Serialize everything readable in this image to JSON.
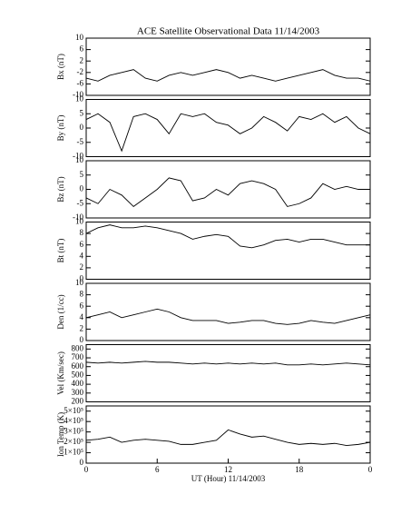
{
  "chart_data": [
    {
      "type": "line",
      "title": "ACE Satellite Observational Data   11/14/2003",
      "y_label": "Bx (nT)",
      "x": [
        0,
        1,
        2,
        3,
        4,
        5,
        6,
        7,
        8,
        9,
        10,
        11,
        12,
        13,
        14,
        15,
        16,
        17,
        18,
        19,
        20,
        21,
        22,
        23,
        24
      ],
      "values": [
        -4,
        -5,
        -3,
        -2,
        -1,
        -4,
        -5,
        -3,
        -2,
        -3,
        -2,
        -1,
        -2,
        -4,
        -3,
        -4,
        -5,
        -4,
        -3,
        -2,
        -1,
        -3,
        -4,
        -4,
        -5
      ],
      "color": "#000000",
      "xlim": [
        0,
        24
      ],
      "ylim": [
        -10,
        10
      ],
      "yticks": [
        -10,
        -6,
        -2,
        2,
        6,
        10
      ]
    },
    {
      "type": "line",
      "y_label": "By (nT)",
      "x": [
        0,
        1,
        2,
        3,
        4,
        5,
        6,
        7,
        8,
        9,
        10,
        11,
        12,
        13,
        14,
        15,
        16,
        17,
        18,
        19,
        20,
        21,
        22,
        23,
        24
      ],
      "values": [
        3,
        5,
        2,
        -8,
        4,
        5,
        3,
        -2,
        5,
        4,
        5,
        2,
        1,
        -2,
        0,
        4,
        2,
        -1,
        4,
        3,
        5,
        2,
        4,
        0,
        -2
      ],
      "color": "#000000",
      "xlim": [
        0,
        24
      ],
      "ylim": [
        -10,
        10
      ],
      "yticks": [
        -10,
        -5,
        0,
        5,
        10
      ]
    },
    {
      "type": "line",
      "y_label": "Bz (nT)",
      "x": [
        0,
        1,
        2,
        3,
        4,
        5,
        6,
        7,
        8,
        9,
        10,
        11,
        12,
        13,
        14,
        15,
        16,
        17,
        18,
        19,
        20,
        21,
        22,
        23,
        24
      ],
      "values": [
        -3,
        -5,
        0,
        -2,
        -6,
        -3,
        0,
        4,
        3,
        -4,
        -3,
        0,
        -2,
        2,
        3,
        2,
        0,
        -6,
        -5,
        -3,
        2,
        0,
        1,
        0,
        0
      ],
      "color": "#000000",
      "xlim": [
        0,
        24
      ],
      "ylim": [
        -10,
        10
      ],
      "yticks": [
        -10,
        -5,
        0,
        5,
        10
      ]
    },
    {
      "type": "line",
      "y_label": "Bt (nT)",
      "x": [
        0,
        1,
        2,
        3,
        4,
        5,
        6,
        7,
        8,
        9,
        10,
        11,
        12,
        13,
        14,
        15,
        16,
        17,
        18,
        19,
        20,
        21,
        22,
        23,
        24
      ],
      "values": [
        8,
        9,
        9.5,
        9,
        9,
        9.3,
        9,
        8.5,
        8,
        7,
        7.5,
        7.8,
        7.5,
        5.8,
        5.5,
        6,
        6.8,
        7,
        6.5,
        7,
        7,
        6.5,
        6,
        6,
        6
      ],
      "color": "#000000",
      "xlim": [
        0,
        24
      ],
      "ylim": [
        0,
        10
      ],
      "yticks": [
        0,
        2,
        4,
        6,
        8,
        10
      ]
    },
    {
      "type": "line",
      "y_label": "Den (1/cc)",
      "x": [
        0,
        1,
        2,
        3,
        4,
        5,
        6,
        7,
        8,
        9,
        10,
        11,
        12,
        13,
        14,
        15,
        16,
        17,
        18,
        19,
        20,
        21,
        22,
        23,
        24
      ],
      "values": [
        4,
        4.5,
        5,
        4,
        4.5,
        5,
        5.5,
        5,
        4,
        3.5,
        3.5,
        3.5,
        3,
        3.2,
        3.5,
        3.5,
        3,
        2.8,
        3,
        3.5,
        3.2,
        3,
        3.5,
        4,
        4.5
      ],
      "color": "#000000",
      "xlim": [
        0,
        24
      ],
      "ylim": [
        0,
        10
      ],
      "yticks": [
        0,
        2,
        4,
        6,
        8,
        10
      ]
    },
    {
      "type": "line",
      "y_label": "Vel (Km/sec)",
      "x": [
        0,
        1,
        2,
        3,
        4,
        5,
        6,
        7,
        8,
        9,
        10,
        11,
        12,
        13,
        14,
        15,
        16,
        17,
        18,
        19,
        20,
        21,
        22,
        23,
        24
      ],
      "values": [
        650,
        640,
        650,
        640,
        650,
        660,
        650,
        650,
        640,
        630,
        640,
        630,
        640,
        630,
        640,
        630,
        640,
        620,
        620,
        630,
        620,
        630,
        640,
        630,
        620
      ],
      "color": "#000000",
      "xlim": [
        0,
        24
      ],
      "ylim": [
        200,
        850
      ],
      "yticks": [
        200,
        300,
        400,
        500,
        600,
        700,
        800
      ]
    },
    {
      "type": "line",
      "y_label": "Ion Temp (K)",
      "x_label": "UT (Hour)  11/14/2003",
      "x": [
        0,
        1,
        2,
        3,
        4,
        5,
        6,
        7,
        8,
        9,
        10,
        11,
        12,
        13,
        14,
        15,
        16,
        17,
        18,
        19,
        20,
        21,
        22,
        23,
        24
      ],
      "values": [
        220000,
        230000,
        250000,
        200000,
        220000,
        230000,
        220000,
        210000,
        180000,
        180000,
        200000,
        220000,
        320000,
        280000,
        250000,
        260000,
        230000,
        200000,
        180000,
        190000,
        180000,
        190000,
        170000,
        180000,
        200000
      ],
      "color": "#000000",
      "xlim": [
        0,
        24
      ],
      "ylim": [
        0,
        550000
      ],
      "yticks": [
        0,
        {
          "value": 100000,
          "label": "1×10⁵"
        },
        {
          "value": 200000,
          "label": "2×10⁵"
        },
        {
          "value": 300000,
          "label": "3×10⁵"
        },
        {
          "value": 400000,
          "label": "4×10⁵"
        },
        {
          "value": 500000,
          "label": "5×10⁵"
        }
      ],
      "xticks": [
        0,
        6,
        12,
        18,
        {
          "value": 24,
          "label": "0"
        }
      ]
    }
  ]
}
